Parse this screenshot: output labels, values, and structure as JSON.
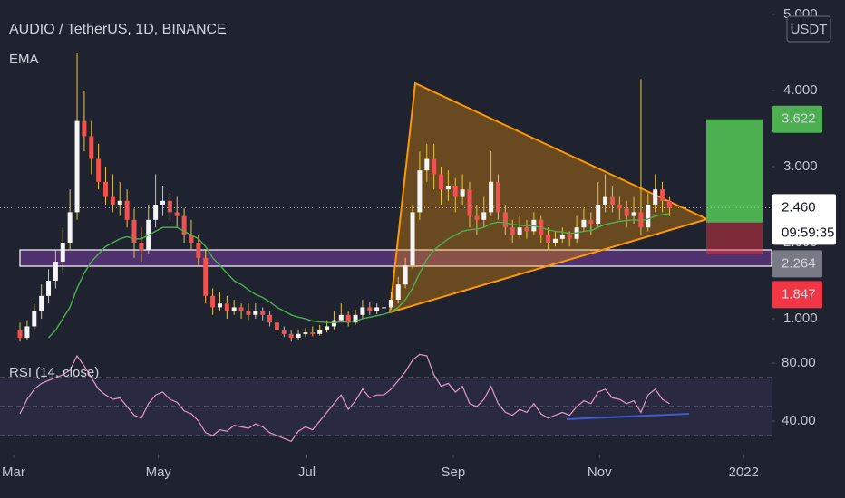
{
  "chart_data": {
    "type": "candlestick",
    "title": "AUDIO / TetherUS, 1D, BINANCE",
    "currency": "USDT",
    "up_color": "#f5f5f5",
    "down_color": "#ef5350",
    "wick_color": "#e8c547",
    "xlim": [
      -2.8,
      105.3
    ],
    "xticks": [
      {
        "value": -0.9,
        "label": "Mar"
      },
      {
        "value": 19.4,
        "label": "May"
      },
      {
        "value": 40.2,
        "label": "Jul"
      },
      {
        "value": 60.7,
        "label": "Sep"
      },
      {
        "value": 81.2,
        "label": "Nov"
      },
      {
        "value": 101.4,
        "label": "2022"
      }
    ],
    "ylim": [
      0.548,
      5.19
    ],
    "yticks": [
      {
        "value": 1,
        "label": "1.000"
      },
      {
        "value": 2,
        "label": "2.000"
      },
      {
        "value": 3,
        "label": "3.000"
      },
      {
        "value": 4,
        "label": "4.000"
      },
      {
        "value": 5,
        "label": "5.000"
      }
    ],
    "candles": [
      [
        0.85,
        0.95,
        0.7,
        0.75
      ],
      [
        0.75,
        0.98,
        0.72,
        0.9
      ],
      [
        0.9,
        1.2,
        0.85,
        1.1
      ],
      [
        1.1,
        1.45,
        1.0,
        1.3
      ],
      [
        1.3,
        1.65,
        1.2,
        1.5
      ],
      [
        1.5,
        1.9,
        1.4,
        1.75
      ],
      [
        1.75,
        2.2,
        1.6,
        2.0
      ],
      [
        2.0,
        2.7,
        1.9,
        2.4
      ],
      [
        2.4,
        4.5,
        2.3,
        3.6
      ],
      [
        3.6,
        4.0,
        3.2,
        3.4
      ],
      [
        3.4,
        3.6,
        2.9,
        3.1
      ],
      [
        3.1,
        3.3,
        2.7,
        2.8
      ],
      [
        2.8,
        3.0,
        2.5,
        2.6
      ],
      [
        2.6,
        2.9,
        2.4,
        2.5
      ],
      [
        2.5,
        2.8,
        2.35,
        2.55
      ],
      [
        2.55,
        2.7,
        2.2,
        2.3
      ],
      [
        2.3,
        2.45,
        1.8,
        2.0
      ],
      [
        2.0,
        2.2,
        1.75,
        1.9
      ],
      [
        1.9,
        2.5,
        1.85,
        2.3
      ],
      [
        2.3,
        2.9,
        2.2,
        2.5
      ],
      [
        2.5,
        2.75,
        2.35,
        2.55
      ],
      [
        2.55,
        2.65,
        2.3,
        2.4
      ],
      [
        2.4,
        2.6,
        2.2,
        2.35
      ],
      [
        2.35,
        2.45,
        2.0,
        2.1
      ],
      [
        2.1,
        2.3,
        1.9,
        2.0
      ],
      [
        2.0,
        2.1,
        1.7,
        1.8
      ],
      [
        1.8,
        1.9,
        1.2,
        1.3
      ],
      [
        1.3,
        1.4,
        1.05,
        1.15
      ],
      [
        1.15,
        1.35,
        1.1,
        1.2
      ],
      [
        1.2,
        1.3,
        1.0,
        1.1
      ],
      [
        1.1,
        1.25,
        1.05,
        1.15
      ],
      [
        1.15,
        1.2,
        1.0,
        1.1
      ],
      [
        1.1,
        1.2,
        0.98,
        1.05
      ],
      [
        1.05,
        1.2,
        1.0,
        1.1
      ],
      [
        1.1,
        1.15,
        0.98,
        1.05
      ],
      [
        1.05,
        1.1,
        0.9,
        0.95
      ],
      [
        0.95,
        1.0,
        0.8,
        0.85
      ],
      [
        0.85,
        0.9,
        0.76,
        0.8
      ],
      [
        0.8,
        0.85,
        0.7,
        0.75
      ],
      [
        0.75,
        0.86,
        0.72,
        0.8
      ],
      [
        0.8,
        0.88,
        0.76,
        0.82
      ],
      [
        0.82,
        0.9,
        0.77,
        0.8
      ],
      [
        0.8,
        0.92,
        0.78,
        0.85
      ],
      [
        0.85,
        0.98,
        0.82,
        0.9
      ],
      [
        0.9,
        1.1,
        0.86,
        0.98
      ],
      [
        0.98,
        1.2,
        0.95,
        1.05
      ],
      [
        1.05,
        1.1,
        0.9,
        0.95
      ],
      [
        0.95,
        1.12,
        0.92,
        1.05
      ],
      [
        1.05,
        1.25,
        1.0,
        1.15
      ],
      [
        1.15,
        1.22,
        1.05,
        1.1
      ],
      [
        1.1,
        1.2,
        1.06,
        1.15
      ],
      [
        1.15,
        1.22,
        1.1,
        1.15
      ],
      [
        1.15,
        1.35,
        1.12,
        1.25
      ],
      [
        1.25,
        1.55,
        1.2,
        1.45
      ],
      [
        1.45,
        1.8,
        1.4,
        1.7
      ],
      [
        1.7,
        2.5,
        1.65,
        2.4
      ],
      [
        2.4,
        3.2,
        2.3,
        2.95
      ],
      [
        2.95,
        3.3,
        2.8,
        3.1
      ],
      [
        3.1,
        3.3,
        2.7,
        2.9
      ],
      [
        2.9,
        3.0,
        2.5,
        2.7
      ],
      [
        2.7,
        2.95,
        2.55,
        2.75
      ],
      [
        2.75,
        2.85,
        2.4,
        2.6
      ],
      [
        2.6,
        2.9,
        2.5,
        2.7
      ],
      [
        2.7,
        2.8,
        2.2,
        2.35
      ],
      [
        2.35,
        2.5,
        2.1,
        2.3
      ],
      [
        2.3,
        2.6,
        2.2,
        2.4
      ],
      [
        2.4,
        3.2,
        2.35,
        2.8
      ],
      [
        2.8,
        2.9,
        2.3,
        2.4
      ],
      [
        2.4,
        2.5,
        2.1,
        2.2
      ],
      [
        2.2,
        2.3,
        2.0,
        2.1
      ],
      [
        2.1,
        2.35,
        2.05,
        2.2
      ],
      [
        2.2,
        2.3,
        2.05,
        2.15
      ],
      [
        2.15,
        2.4,
        2.1,
        2.3
      ],
      [
        2.3,
        2.35,
        2.0,
        2.1
      ],
      [
        2.1,
        2.2,
        1.9,
        2.0
      ],
      [
        2.0,
        2.15,
        1.95,
        2.05
      ],
      [
        2.05,
        2.2,
        2.0,
        2.1
      ],
      [
        2.1,
        2.15,
        1.95,
        2.05
      ],
      [
        2.05,
        2.35,
        2.0,
        2.2
      ],
      [
        2.2,
        2.45,
        2.15,
        2.3
      ],
      [
        2.3,
        2.4,
        2.1,
        2.25
      ],
      [
        2.25,
        2.8,
        2.2,
        2.5
      ],
      [
        2.5,
        2.9,
        2.4,
        2.6
      ],
      [
        2.6,
        2.75,
        2.4,
        2.5
      ],
      [
        2.5,
        2.6,
        2.3,
        2.45
      ],
      [
        2.45,
        2.55,
        2.2,
        2.35
      ],
      [
        2.35,
        2.6,
        2.25,
        2.4
      ],
      [
        2.4,
        4.15,
        2.1,
        2.2
      ],
      [
        2.2,
        2.65,
        2.15,
        2.5
      ],
      [
        2.5,
        2.9,
        2.4,
        2.7
      ],
      [
        2.7,
        2.8,
        2.4,
        2.55
      ],
      [
        2.55,
        2.6,
        2.35,
        2.46
      ]
    ],
    "series": [
      {
        "name": "EMA",
        "color": "#4caf50",
        "values": [
          null,
          null,
          null,
          null,
          0.75,
          0.85,
          1.0,
          1.15,
          1.4,
          1.6,
          1.75,
          1.85,
          1.95,
          2.0,
          2.05,
          2.08,
          2.05,
          2.05,
          2.1,
          2.15,
          2.2,
          2.2,
          2.2,
          2.15,
          2.1,
          2.05,
          1.95,
          1.8,
          1.7,
          1.6,
          1.5,
          1.45,
          1.38,
          1.32,
          1.28,
          1.22,
          1.15,
          1.1,
          1.05,
          1.02,
          1.0,
          0.97,
          0.96,
          0.95,
          0.95,
          0.96,
          0.96,
          0.97,
          1.0,
          1.02,
          1.04,
          1.06,
          1.09,
          1.15,
          1.25,
          1.4,
          1.6,
          1.78,
          1.9,
          1.98,
          2.05,
          2.1,
          2.15,
          2.17,
          2.18,
          2.2,
          2.25,
          2.27,
          2.26,
          2.24,
          2.23,
          2.22,
          2.22,
          2.2,
          2.17,
          2.15,
          2.14,
          2.12,
          2.13,
          2.15,
          2.16,
          2.2,
          2.24,
          2.26,
          2.28,
          2.29,
          2.3,
          2.29,
          2.31,
          2.35,
          2.37,
          2.38
        ]
      }
    ],
    "last_price": {
      "value": 2.46,
      "label": "2.460",
      "countdown": "09:59:35"
    },
    "position": {
      "target": {
        "value": 3.622,
        "label": "3.622",
        "color": "#4caf50"
      },
      "entry": {
        "value": 2.264,
        "label": "2.264",
        "color": "#787b86"
      },
      "stop": {
        "value": 1.847,
        "label": "1.847",
        "color": "#f23645"
      }
    },
    "rsi": {
      "title": "RSI (14, close)",
      "color": "#e39ac6",
      "ylim": [
        18.1,
        86.9
      ],
      "yticks": [
        {
          "value": 40,
          "label": "40.00"
        },
        {
          "value": 80,
          "label": "80.00"
        }
      ],
      "levels": [
        70,
        50,
        30
      ],
      "values": [
        45,
        55,
        62,
        66,
        68,
        70,
        72,
        75,
        85,
        78,
        70,
        62,
        58,
        55,
        56,
        50,
        44,
        42,
        52,
        58,
        60,
        55,
        53,
        47,
        45,
        40,
        32,
        30,
        34,
        33,
        37,
        36,
        35,
        38,
        36,
        32,
        30,
        28,
        26,
        33,
        36,
        34,
        40,
        46,
        52,
        58,
        48,
        54,
        62,
        56,
        58,
        58,
        62,
        68,
        74,
        82,
        86,
        85,
        72,
        64,
        66,
        60,
        64,
        52,
        50,
        55,
        64,
        52,
        46,
        44,
        48,
        46,
        52,
        45,
        42,
        44,
        46,
        44,
        50,
        54,
        52,
        60,
        62,
        56,
        55,
        52,
        54,
        46,
        58,
        62,
        55,
        52
      ]
    }
  }
}
